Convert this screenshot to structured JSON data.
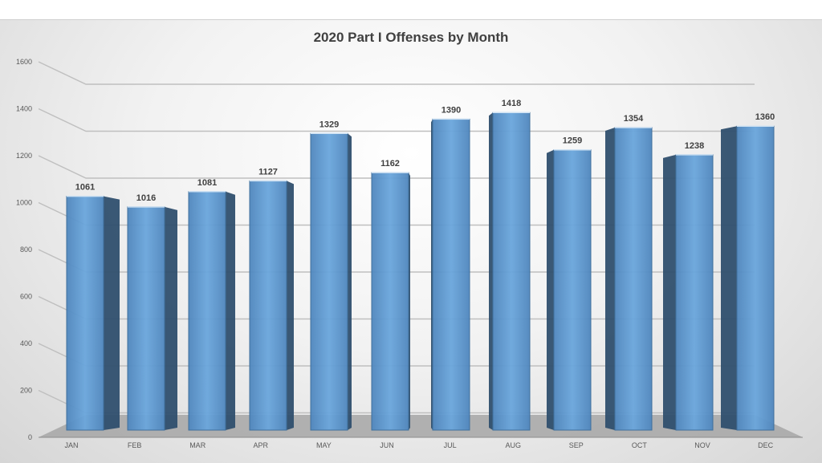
{
  "chart_data": {
    "type": "bar",
    "title": "2020 Part I Offenses by Month",
    "xlabel": "",
    "ylabel": "",
    "categories": [
      "JAN",
      "FEB",
      "MAR",
      "APR",
      "MAY",
      "JUN",
      "JUL",
      "AUG",
      "SEP",
      "OCT",
      "NOV",
      "DEC"
    ],
    "values": [
      1061,
      1016,
      1081,
      1127,
      1329,
      1162,
      1390,
      1418,
      1259,
      1354,
      1238,
      1360
    ],
    "ylim": [
      0,
      1600
    ],
    "yticks": [
      0,
      200,
      400,
      600,
      800,
      1000,
      1200,
      1400,
      1600
    ],
    "grid": true,
    "legend": "none",
    "style": "3d-column"
  },
  "colors": {
    "bar_front": "#5b9bd5",
    "bar_side": "#2f4f6e",
    "floor": "#a6a6a6"
  }
}
